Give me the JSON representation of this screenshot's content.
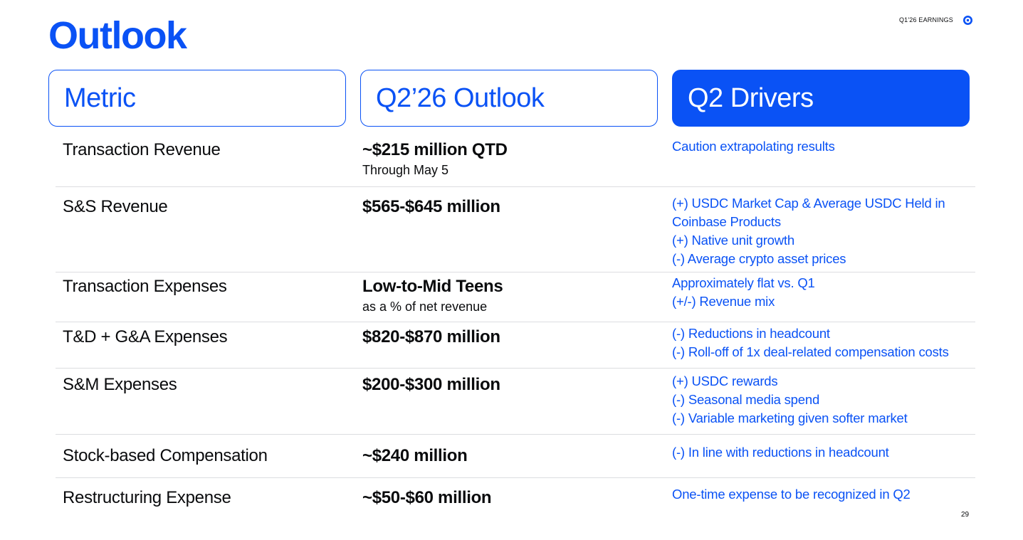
{
  "header": {
    "title": "Outlook",
    "tag": "Q1'26 EARNINGS",
    "logo_icon": "coinbase-logo-icon",
    "accent_color": "#0a52f5"
  },
  "table": {
    "columns": [
      "Metric",
      "Q2’26 Outlook",
      "Q2 Drivers"
    ],
    "rows": [
      {
        "metric": "Transaction Revenue",
        "outlook": "~$215 million QTD",
        "outlook_note": "Through May 5",
        "drivers": [
          "Caution extrapolating results"
        ]
      },
      {
        "metric": "S&S Revenue",
        "outlook": "$565-$645 million",
        "outlook_note": "",
        "drivers": [
          "(+) USDC Market Cap & Average USDC Held in",
          "Coinbase Products",
          "(+) Native unit growth",
          "(-) Average crypto asset prices"
        ]
      },
      {
        "metric": "Transaction Expenses",
        "outlook": "Low-to-Mid Teens",
        "outlook_note": "as a % of net revenue",
        "drivers": [
          "Approximately flat vs. Q1",
          "(+/-) Revenue mix"
        ]
      },
      {
        "metric": "T&D + G&A Expenses",
        "outlook": "$820-$870 million",
        "outlook_note": "",
        "drivers": [
          "(-) Reductions in headcount",
          "(-) Roll-off of 1x deal-related compensation costs"
        ]
      },
      {
        "metric": "S&M Expenses",
        "outlook": "$200-$300 million",
        "outlook_note": "",
        "drivers": [
          "(+) USDC rewards",
          "(-) Seasonal media spend",
          "(-) Variable marketing given softer market"
        ]
      },
      {
        "metric": "Stock-based Compensation",
        "outlook": "~$240 million",
        "outlook_note": "",
        "drivers": [
          "(-) In line with reductions in headcount"
        ]
      },
      {
        "metric": "Restructuring Expense",
        "outlook": "~$50-$60 million",
        "outlook_note": "",
        "drivers": [
          "One-time expense to be recognized in Q2"
        ]
      }
    ]
  },
  "footer": {
    "page_number": "29"
  }
}
